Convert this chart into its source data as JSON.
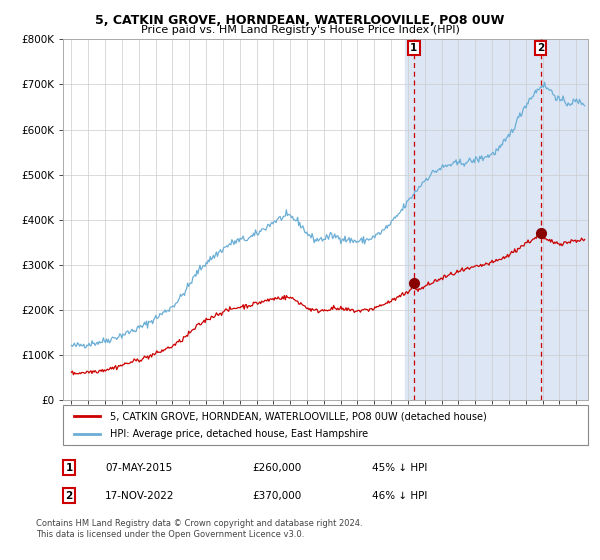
{
  "title1": "5, CATKIN GROVE, HORNDEAN, WATERLOOVILLE, PO8 0UW",
  "title2": "Price paid vs. HM Land Registry's House Price Index (HPI)",
  "red_label": "5, CATKIN GROVE, HORNDEAN, WATERLOOVILLE, PO8 0UW (detached house)",
  "blue_label": "HPI: Average price, detached house, East Hampshire",
  "annotation1": {
    "num": "1",
    "date": "07-MAY-2015",
    "price": "£260,000",
    "pct": "45% ↓ HPI"
  },
  "annotation2": {
    "num": "2",
    "date": "17-NOV-2022",
    "price": "£370,000",
    "pct": "46% ↓ HPI"
  },
  "footnote1": "Contains HM Land Registry data © Crown copyright and database right 2024.",
  "footnote2": "This data is licensed under the Open Government Licence v3.0.",
  "vline1_x": 2015.35,
  "vline2_x": 2022.88,
  "sale1_x": 2015.35,
  "sale1_y": 260000,
  "sale2_x": 2022.88,
  "sale2_y": 370000,
  "ylim": [
    0,
    800000
  ],
  "xlim": [
    1994.5,
    2025.7
  ],
  "bg_highlight_start": 2014.8,
  "bg_highlight_end": 2025.7,
  "bg_color": "#dce6f5",
  "hpi_anchors": [
    [
      1995.0,
      120000
    ],
    [
      1995.5,
      122000
    ],
    [
      1996.0,
      125000
    ],
    [
      1996.5,
      128000
    ],
    [
      1997.0,
      132000
    ],
    [
      1997.5,
      138000
    ],
    [
      1998.0,
      145000
    ],
    [
      1998.5,
      152000
    ],
    [
      1999.0,
      160000
    ],
    [
      1999.5,
      170000
    ],
    [
      2000.0,
      182000
    ],
    [
      2000.5,
      195000
    ],
    [
      2001.0,
      208000
    ],
    [
      2001.5,
      228000
    ],
    [
      2002.0,
      255000
    ],
    [
      2002.5,
      285000
    ],
    [
      2003.0,
      305000
    ],
    [
      2003.5,
      320000
    ],
    [
      2004.0,
      335000
    ],
    [
      2004.5,
      348000
    ],
    [
      2005.0,
      355000
    ],
    [
      2005.5,
      358000
    ],
    [
      2006.0,
      368000
    ],
    [
      2006.5,
      382000
    ],
    [
      2007.0,
      395000
    ],
    [
      2007.5,
      405000
    ],
    [
      2008.0,
      408000
    ],
    [
      2008.5,
      395000
    ],
    [
      2009.0,
      370000
    ],
    [
      2009.5,
      355000
    ],
    [
      2010.0,
      358000
    ],
    [
      2010.5,
      365000
    ],
    [
      2011.0,
      360000
    ],
    [
      2011.5,
      355000
    ],
    [
      2012.0,
      352000
    ],
    [
      2012.5,
      355000
    ],
    [
      2013.0,
      362000
    ],
    [
      2013.5,
      375000
    ],
    [
      2014.0,
      392000
    ],
    [
      2014.5,
      415000
    ],
    [
      2015.0,
      440000
    ],
    [
      2015.5,
      465000
    ],
    [
      2016.0,
      488000
    ],
    [
      2016.5,
      505000
    ],
    [
      2017.0,
      515000
    ],
    [
      2017.5,
      522000
    ],
    [
      2018.0,
      525000
    ],
    [
      2018.5,
      528000
    ],
    [
      2019.0,
      532000
    ],
    [
      2019.5,
      538000
    ],
    [
      2020.0,
      545000
    ],
    [
      2020.5,
      560000
    ],
    [
      2021.0,
      585000
    ],
    [
      2021.5,
      620000
    ],
    [
      2022.0,
      655000
    ],
    [
      2022.5,
      680000
    ],
    [
      2023.0,
      700000
    ],
    [
      2023.5,
      685000
    ],
    [
      2024.0,
      665000
    ],
    [
      2024.5,
      658000
    ],
    [
      2025.0,
      662000
    ],
    [
      2025.5,
      658000
    ]
  ],
  "red_anchors": [
    [
      1995.0,
      60000
    ],
    [
      1995.5,
      61000
    ],
    [
      1996.0,
      63000
    ],
    [
      1996.5,
      65000
    ],
    [
      1997.0,
      68000
    ],
    [
      1997.5,
      72000
    ],
    [
      1998.0,
      78000
    ],
    [
      1998.5,
      84000
    ],
    [
      1999.0,
      90000
    ],
    [
      1999.5,
      96000
    ],
    [
      2000.0,
      103000
    ],
    [
      2000.5,
      112000
    ],
    [
      2001.0,
      120000
    ],
    [
      2001.5,
      132000
    ],
    [
      2002.0,
      148000
    ],
    [
      2002.5,
      165000
    ],
    [
      2003.0,
      178000
    ],
    [
      2003.5,
      188000
    ],
    [
      2004.0,
      196000
    ],
    [
      2004.5,
      202000
    ],
    [
      2005.0,
      207000
    ],
    [
      2005.5,
      210000
    ],
    [
      2006.0,
      215000
    ],
    [
      2006.5,
      220000
    ],
    [
      2007.0,
      225000
    ],
    [
      2007.5,
      228000
    ],
    [
      2008.0,
      228000
    ],
    [
      2008.5,
      218000
    ],
    [
      2009.0,
      205000
    ],
    [
      2009.5,
      198000
    ],
    [
      2010.0,
      200000
    ],
    [
      2010.5,
      204000
    ],
    [
      2011.0,
      202000
    ],
    [
      2011.5,
      200000
    ],
    [
      2012.0,
      198000
    ],
    [
      2012.5,
      200000
    ],
    [
      2013.0,
      204000
    ],
    [
      2013.5,
      212000
    ],
    [
      2014.0,
      220000
    ],
    [
      2014.5,
      230000
    ],
    [
      2015.0,
      238000
    ],
    [
      2015.35,
      260000
    ],
    [
      2015.5,
      242000
    ],
    [
      2016.0,
      252000
    ],
    [
      2016.5,
      262000
    ],
    [
      2017.0,
      270000
    ],
    [
      2017.5,
      278000
    ],
    [
      2018.0,
      285000
    ],
    [
      2018.5,
      290000
    ],
    [
      2019.0,
      295000
    ],
    [
      2019.5,
      300000
    ],
    [
      2020.0,
      305000
    ],
    [
      2020.5,
      312000
    ],
    [
      2021.0,
      322000
    ],
    [
      2021.5,
      335000
    ],
    [
      2022.0,
      348000
    ],
    [
      2022.5,
      358000
    ],
    [
      2022.88,
      370000
    ],
    [
      2023.0,
      358000
    ],
    [
      2023.5,
      352000
    ],
    [
      2024.0,
      348000
    ],
    [
      2024.5,
      350000
    ],
    [
      2025.0,
      355000
    ],
    [
      2025.5,
      355000
    ]
  ]
}
